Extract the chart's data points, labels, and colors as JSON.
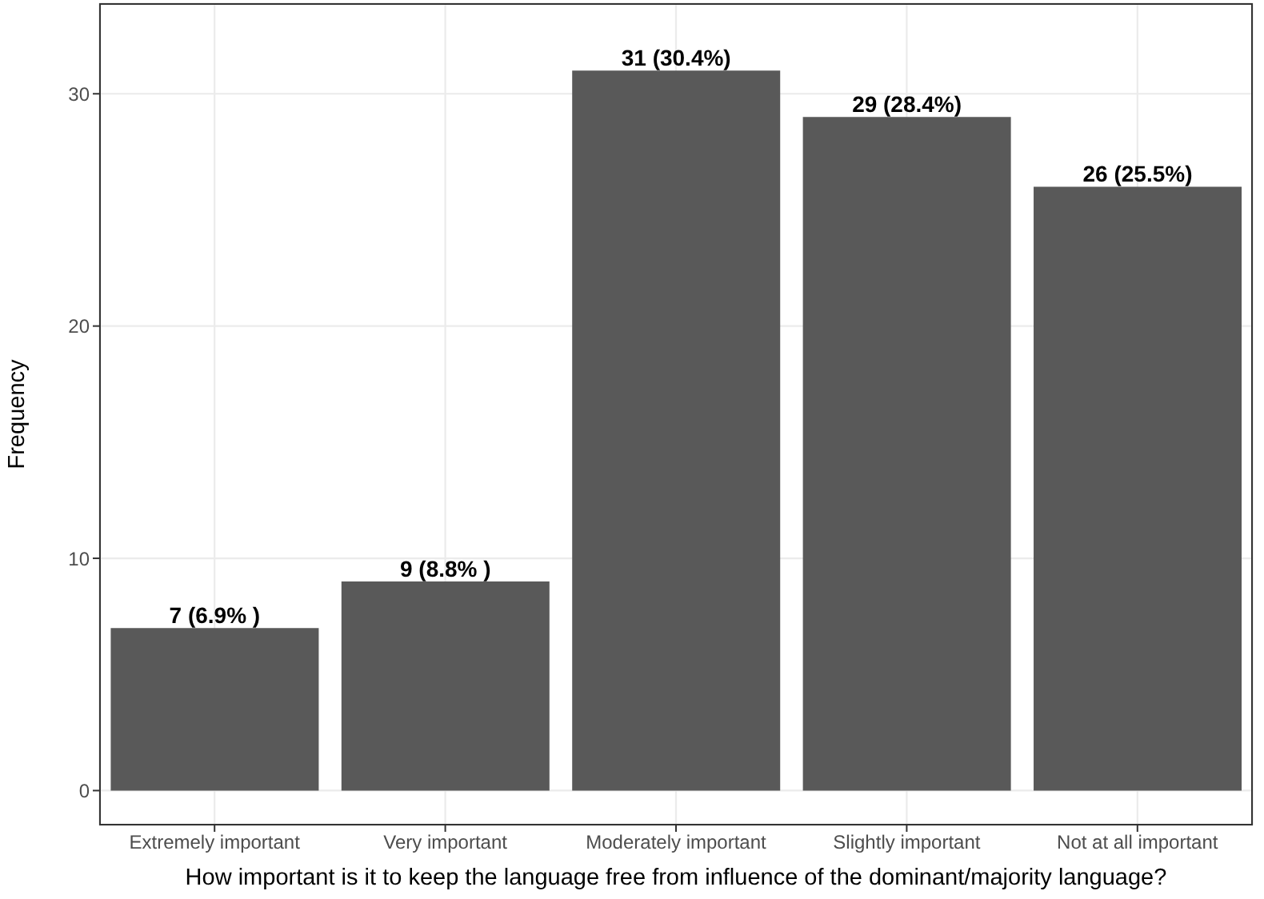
{
  "chart_data": {
    "type": "bar",
    "xlabel": "How important is it to keep the language free from influence of the dominant/majority language?",
    "ylabel": "Frequency",
    "categories": [
      "Extremely important",
      "Very important",
      "Moderately important",
      "Slightly important",
      "Not at all important"
    ],
    "values": [
      7,
      9,
      31,
      29,
      26
    ],
    "value_labels": [
      "7  (6.9% )",
      "9  (8.8% )",
      "31 (30.4%)",
      "29 (28.4%)",
      "26 (25.5%)"
    ],
    "color": "#595959",
    "ylim": [
      -1.5,
      33.9
    ],
    "yticks": [
      0,
      10,
      20,
      30
    ],
    "grid": true
  }
}
